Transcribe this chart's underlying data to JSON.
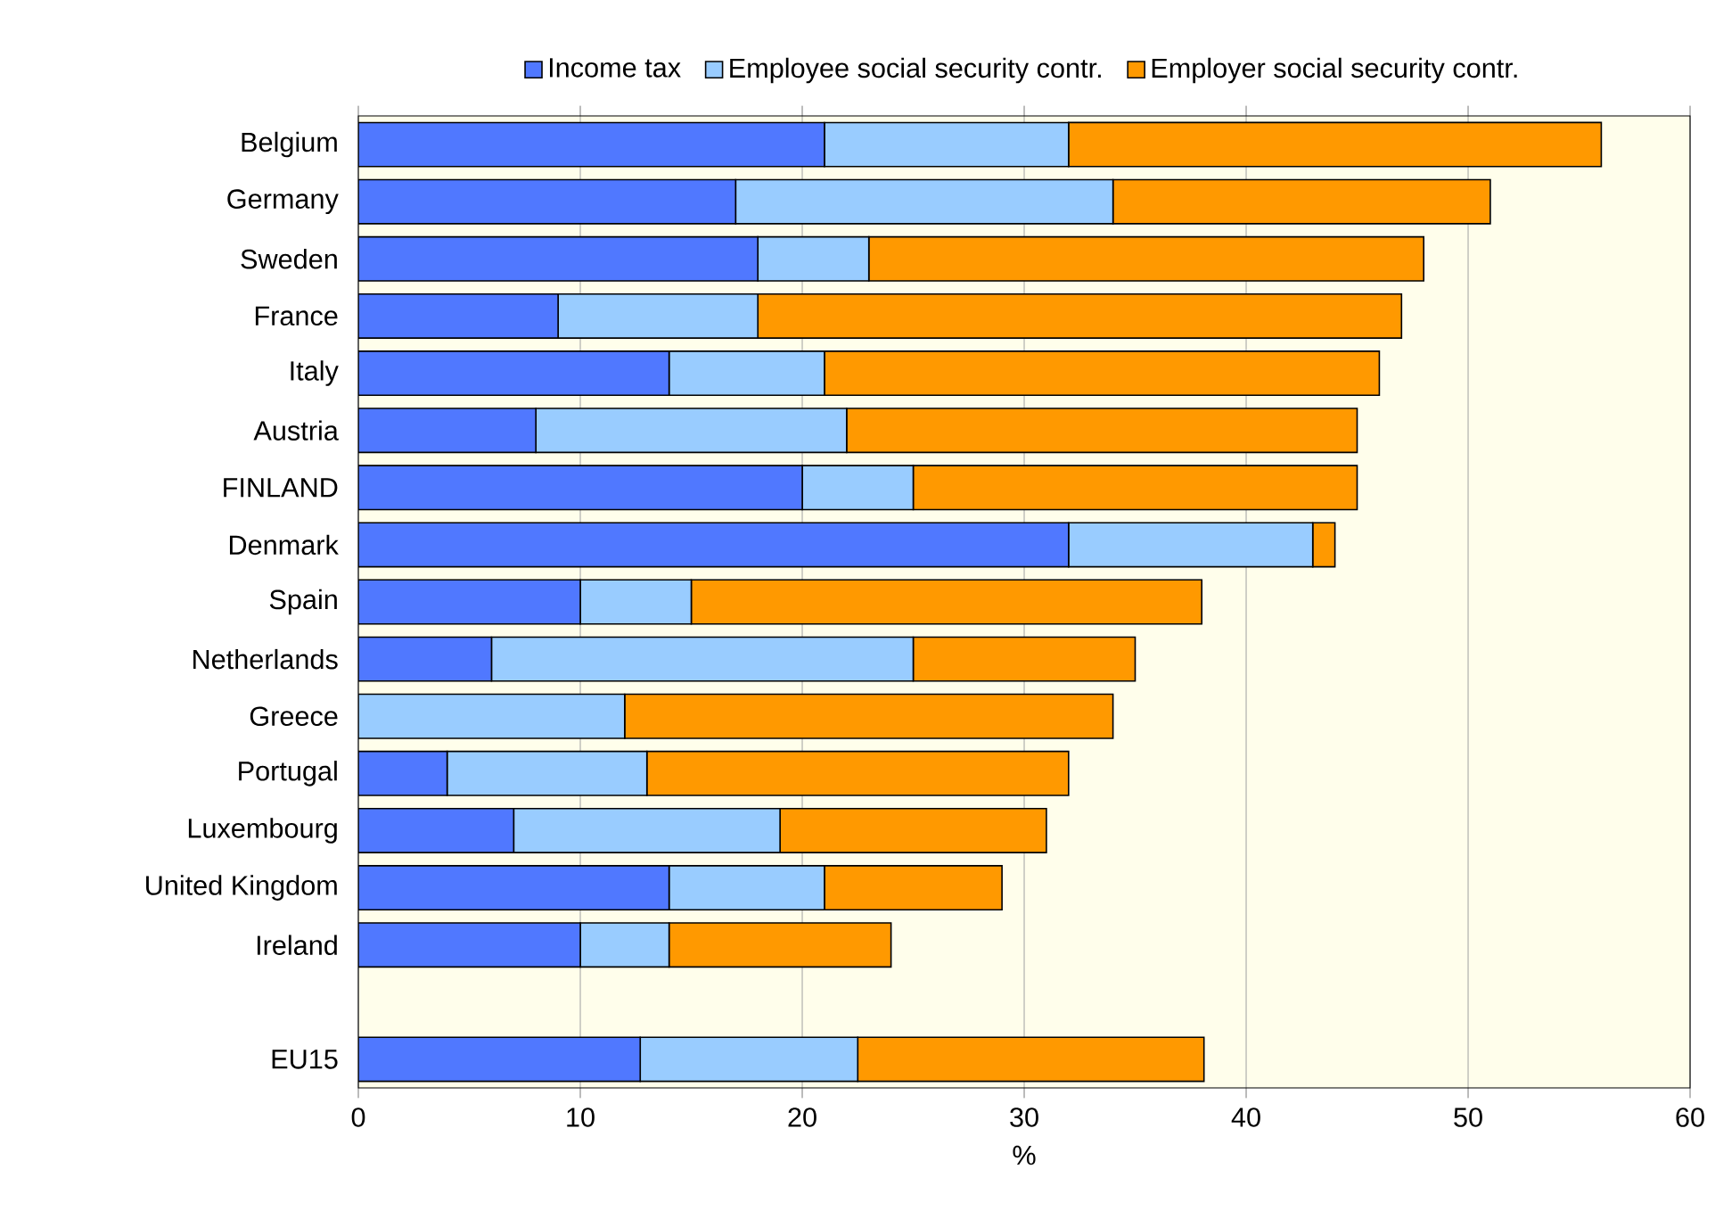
{
  "chart_data": {
    "type": "bar",
    "orientation": "horizontal",
    "stacked": true,
    "xlabel": "%",
    "categories": [
      "Belgium",
      "Germany",
      "Sweden",
      "France",
      "Italy",
      "Austria",
      "FINLAND",
      "Denmark",
      "Spain",
      "Netherlands",
      "Greece",
      "Portugal",
      "Luxembourg",
      "United Kingdom",
      "Ireland",
      null,
      "EU15"
    ],
    "series": [
      {
        "name": "Income tax",
        "color": "#5078ff",
        "values": [
          21,
          17,
          18,
          9,
          14,
          8,
          20,
          32,
          10,
          6,
          0,
          4,
          7,
          14,
          10,
          null,
          12.7
        ]
      },
      {
        "name": "Employee social security contr.",
        "color": "#99ccff",
        "values": [
          11,
          17,
          5,
          9,
          7,
          14,
          5,
          11,
          5,
          19,
          12,
          9,
          12,
          7,
          4,
          null,
          9.8
        ]
      },
      {
        "name": "Employer social security contr.",
        "color": "#ff9900",
        "values": [
          24,
          17,
          25,
          29,
          25,
          23,
          20,
          1,
          23,
          10,
          22,
          19,
          12,
          8,
          10,
          null,
          15.6
        ]
      }
    ],
    "xlim": [
      0,
      60
    ],
    "xticks": [
      0,
      10,
      20,
      30,
      40,
      50,
      60
    ],
    "grid": "x",
    "legend": "top"
  }
}
